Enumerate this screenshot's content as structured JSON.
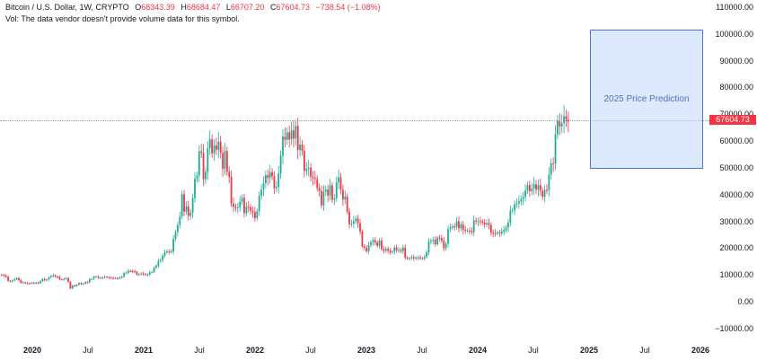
{
  "legend": {
    "symbol": "Bitcoin / U.S. Dollar, 1W, CRYPTO",
    "open_label": "O",
    "open": "68343.39",
    "high_label": "H",
    "high": "68684.47",
    "low_label": "L",
    "low": "66707.20",
    "close_label": "C",
    "close": "67604.73",
    "change": "−738.54 (−1.08%)",
    "volume_note": "Vol: The data vendor doesn't provide volume data for this symbol."
  },
  "last_price_label": "67604.73",
  "prediction_box": {
    "label": "2025 Price Prediction",
    "top_value": 101000,
    "bottom_value": 50000
  },
  "colors": {
    "up": "#22ab94",
    "down": "#f23645",
    "neutral": "#787b86",
    "box_border": "#4a78d6",
    "box_fill": "#bbd6fb"
  },
  "chart_data": {
    "type": "candlestick",
    "title": "Bitcoin / U.S. Dollar, 1W, CRYPTO",
    "xlabel": "",
    "ylabel": "",
    "ylim": [
      -10000,
      110000
    ],
    "y_ticks": [
      "110000.00",
      "100000.00",
      "90000.00",
      "80000.00",
      "70000.00",
      "60000.00",
      "50000.00",
      "40000.00",
      "30000.00",
      "20000.00",
      "10000.00",
      "0.00",
      "−10000.00"
    ],
    "x_ticks": [
      {
        "label": "2020",
        "year": true
      },
      {
        "label": "Jul",
        "year": false
      },
      {
        "label": "2021",
        "year": true
      },
      {
        "label": "Jul",
        "year": false
      },
      {
        "label": "2022",
        "year": true
      },
      {
        "label": "Jul",
        "year": false
      },
      {
        "label": "2023",
        "year": true
      },
      {
        "label": "Jul",
        "year": false
      },
      {
        "label": "2024",
        "year": true
      },
      {
        "label": "Jul",
        "year": false
      },
      {
        "label": "2025",
        "year": true
      },
      {
        "label": "Jul",
        "year": false
      },
      {
        "label": "2026",
        "year": true
      }
    ],
    "grid": false,
    "start": "2019-09",
    "frequency": "weekly",
    "weekly_closes": [
      10300,
      10100,
      9600,
      8200,
      8000,
      8300,
      8700,
      9200,
      8400,
      7400,
      7600,
      7300,
      7200,
      7100,
      7500,
      7200,
      7400,
      7300,
      8100,
      8800,
      8300,
      8700,
      9400,
      9900,
      10200,
      9700,
      9600,
      8700,
      8600,
      8900,
      9100,
      7800,
      5300,
      6400,
      6200,
      6700,
      7300,
      6900,
      7100,
      7700,
      7600,
      8800,
      8900,
      9700,
      9700,
      9300,
      9200,
      9400,
      9700,
      9500,
      9300,
      9200,
      9100,
      9200,
      9100,
      9300,
      9700,
      11000,
      11200,
      11900,
      11800,
      11700,
      11500,
      10400,
      10600,
      10900,
      10700,
      10400,
      10500,
      11300,
      11500,
      13000,
      13700,
      15500,
      15900,
      17500,
      18800,
      19200,
      19000,
      19100,
      23800,
      26400,
      29000,
      32200,
      40500,
      34000,
      36000,
      32400,
      33600,
      39000,
      46200,
      47500,
      56500,
      55900,
      46100,
      48800,
      57700,
      61000,
      55800,
      58700,
      57100,
      60100,
      56000,
      50000,
      56600,
      48900,
      47000,
      37000,
      35700,
      35500,
      35600,
      37700,
      39100,
      33400,
      35800,
      35600,
      34300,
      33800,
      31600,
      34100,
      39900,
      42100,
      44600,
      47600,
      46600,
      48800,
      47200,
      42700,
      43200,
      48200,
      54900,
      62000,
      60800,
      63600,
      61000,
      64300,
      61300,
      66000,
      57000,
      59000,
      56600,
      49200,
      50000,
      50400,
      47000,
      46600,
      46200,
      42800,
      41700,
      36300,
      41500,
      42200,
      40000,
      43800,
      38400,
      39000,
      44900,
      46800,
      42200,
      38500,
      39600,
      34000,
      29300,
      29500,
      30500,
      31400,
      29700,
      26600,
      21000,
      20500,
      19200,
      21500,
      22600,
      23300,
      22500,
      21200,
      23200,
      20000,
      19400,
      20100,
      19400,
      18800,
      19100,
      20600,
      19500,
      19700,
      19300,
      20600,
      16800,
      16500,
      16600,
      17000,
      16500,
      16800,
      16900,
      16600,
      16550,
      17100,
      18800,
      22700,
      23100,
      23500,
      21800,
      24300,
      24100,
      23100,
      20300,
      22000,
      27500,
      28000,
      28500,
      28300,
      30400,
      27800,
      29200,
      27200,
      26900,
      26900,
      26800,
      26300,
      30700,
      30300,
      30400,
      30300,
      29900,
      29200,
      29700,
      29000,
      26100,
      26000,
      25800,
      26200,
      25900,
      26600,
      27100,
      28000,
      29900,
      34400,
      34500,
      36700,
      37000,
      37800,
      38700,
      39500,
      41900,
      43900,
      41600,
      42600,
      44200,
      42200,
      43900,
      41800,
      39500,
      42100,
      42000,
      47800,
      52000,
      51900,
      62800,
      68000,
      65800,
      67000,
      69600,
      68344,
      67605
    ],
    "notable_points": {
      "ath_2021": 69000,
      "low_2022": 15500,
      "high_2024": 73800,
      "last_close": 67604.73
    }
  }
}
